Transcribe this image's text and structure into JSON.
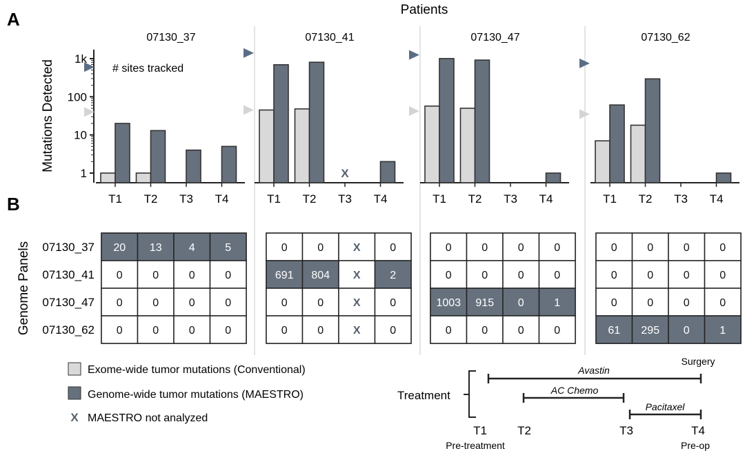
{
  "panel_a_label": "A",
  "panel_b_label": "B",
  "patients_title": "Patients",
  "y_axis_label": "Mutations Detected",
  "y_ticks": [
    "1k",
    "100",
    "10",
    "1"
  ],
  "sites_tracked_label": "# sites tracked",
  "genome_panels_label": "Genome Panels",
  "time_points": [
    "T1",
    "T2",
    "T3",
    "T4"
  ],
  "not_analyzed_mark": "X",
  "colors": {
    "conventional": "#d9d9d9",
    "maestro": "#67717e",
    "sites_marker": "#5b6d85",
    "sites_marker_light": "#d4d4d4",
    "highlight_cell": "#67717e",
    "divider": "#c8c8c8",
    "axis": "#222222"
  },
  "chart_data": {
    "type": "bar",
    "title": "Patients",
    "ylabel": "Mutations Detected",
    "y_scale": "log",
    "ylim": [
      1,
      1000
    ],
    "categories": [
      "T1",
      "T2",
      "T3",
      "T4"
    ],
    "patients": [
      {
        "name": "07130_37",
        "sites_tracked_maestro": 600,
        "sites_tracked_conventional": 40,
        "series": [
          {
            "name": "Exome-wide tumor mutations (Conventional)",
            "values": [
              1,
              1,
              null,
              null
            ]
          },
          {
            "name": "Genome-wide tumor mutations (MAESTRO)",
            "values": [
              20,
              13,
              4,
              5
            ]
          }
        ],
        "not_analyzed": []
      },
      {
        "name": "07130_41",
        "sites_tracked_maestro": 1400,
        "sites_tracked_conventional": 45,
        "series": [
          {
            "name": "Exome-wide tumor mutations (Conventional)",
            "values": [
              45,
              48,
              null,
              null
            ]
          },
          {
            "name": "Genome-wide tumor mutations (MAESTRO)",
            "values": [
              691,
              804,
              null,
              2
            ]
          }
        ],
        "not_analyzed": [
          "T3"
        ]
      },
      {
        "name": "07130_47",
        "sites_tracked_maestro": 1250,
        "sites_tracked_conventional": 42,
        "series": [
          {
            "name": "Exome-wide tumor mutations (Conventional)",
            "values": [
              57,
              50,
              null,
              null
            ]
          },
          {
            "name": "Genome-wide tumor mutations (MAESTRO)",
            "values": [
              1003,
              915,
              null,
              1
            ]
          }
        ],
        "not_analyzed": []
      },
      {
        "name": "07130_62",
        "sites_tracked_maestro": 750,
        "sites_tracked_conventional": 35,
        "series": [
          {
            "name": "Exome-wide tumor mutations (Conventional)",
            "values": [
              7,
              18,
              null,
              null
            ]
          },
          {
            "name": "Genome-wide tumor mutations (MAESTRO)",
            "values": [
              61,
              295,
              null,
              1
            ]
          }
        ],
        "not_analyzed": []
      }
    ]
  },
  "genome_panels": {
    "rows": [
      "07130_37",
      "07130_41",
      "07130_47",
      "07130_62"
    ],
    "blocks": [
      {
        "patient": "07130_37",
        "cells": [
          [
            "20",
            "13",
            "4",
            "5"
          ],
          [
            "0",
            "0",
            "0",
            "0"
          ],
          [
            "0",
            "0",
            "0",
            "0"
          ],
          [
            "0",
            "0",
            "0",
            "0"
          ]
        ],
        "highlight_row": 0
      },
      {
        "patient": "07130_41",
        "cells": [
          [
            "0",
            "0",
            "X",
            "0"
          ],
          [
            "691",
            "804",
            "X",
            "2"
          ],
          [
            "0",
            "0",
            "X",
            "0"
          ],
          [
            "0",
            "0",
            "X",
            "0"
          ]
        ],
        "highlight_row": 1
      },
      {
        "patient": "07130_47",
        "cells": [
          [
            "0",
            "0",
            "0",
            "0"
          ],
          [
            "0",
            "0",
            "0",
            "0"
          ],
          [
            "1003",
            "915",
            "0",
            "1"
          ],
          [
            "0",
            "0",
            "0",
            "0"
          ]
        ],
        "highlight_row": 2
      },
      {
        "patient": "07130_62",
        "cells": [
          [
            "0",
            "0",
            "0",
            "0"
          ],
          [
            "0",
            "0",
            "0",
            "0"
          ],
          [
            "0",
            "0",
            "0",
            "0"
          ],
          [
            "61",
            "295",
            "0",
            "1"
          ]
        ],
        "highlight_row": 3
      }
    ]
  },
  "legend": {
    "conventional": "Exome-wide tumor mutations (Conventional)",
    "maestro": "Genome-wide tumor mutations (MAESTRO)",
    "not_analyzed": "MAESTRO not analyzed"
  },
  "treatment": {
    "label": "Treatment",
    "surgery": "Surgery",
    "pre_treatment": "Pre-treatment",
    "pre_op": "Pre-op",
    "drugs": [
      {
        "name": "Avastin",
        "from": "T1",
        "to": "T4"
      },
      {
        "name": "AC Chemo",
        "from": "T2",
        "to": "T3"
      },
      {
        "name": "Pacitaxel",
        "from": "T3",
        "to": "T4"
      }
    ],
    "time_points": [
      "T1",
      "T2",
      "T3",
      "T4"
    ]
  }
}
